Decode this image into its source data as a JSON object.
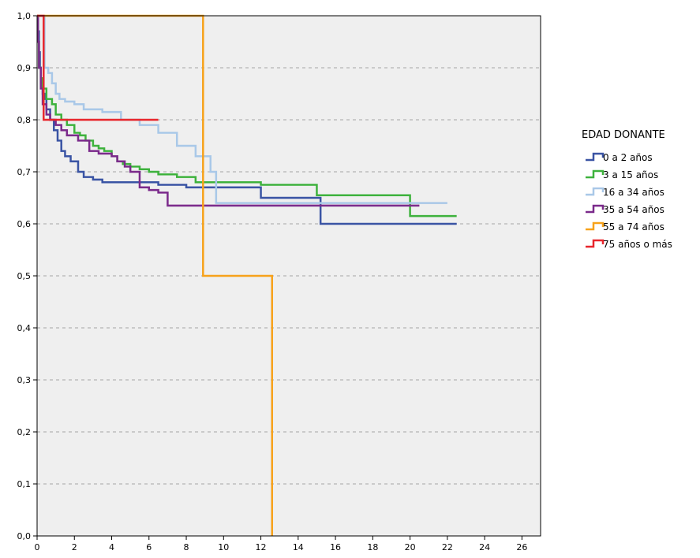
{
  "chart_data": {
    "type": "line",
    "title": "",
    "xlabel": "",
    "ylabel": "",
    "xlim": [
      0,
      27
    ],
    "ylim": [
      0.0,
      1.0
    ],
    "x_ticks": [
      0,
      2,
      4,
      6,
      8,
      10,
      12,
      14,
      16,
      18,
      20,
      22,
      24,
      26
    ],
    "y_ticks": [
      0.0,
      0.1,
      0.2,
      0.3,
      0.4,
      0.5,
      0.6,
      0.7,
      0.8,
      0.9,
      1.0
    ],
    "x_tick_labels": [
      "0",
      "2",
      "4",
      "6",
      "8",
      "10",
      "12",
      "14",
      "16",
      "18",
      "20",
      "22",
      "24",
      "26"
    ],
    "y_tick_labels": [
      "0,0",
      "0,1",
      "0,2",
      "0,3",
      "0,4",
      "0,5",
      "0,6",
      "0,7",
      "0,8",
      "0,9",
      "1,0"
    ],
    "grid": "horizontal-dashed",
    "background": "#efefef",
    "legend": {
      "title": "EDAD DONANTE",
      "position": "right"
    },
    "step": true,
    "series": [
      {
        "name": "0 a 2 años",
        "color": "#3a54a4",
        "x": [
          0,
          0.05,
          0.1,
          0.15,
          0.2,
          0.3,
          0.4,
          0.5,
          0.7,
          0.9,
          1.1,
          1.3,
          1.5,
          1.8,
          2.2,
          2.5,
          3.0,
          3.5,
          5.0,
          6.5,
          8.0,
          10.0,
          12.0,
          15.2,
          22.5
        ],
        "y": [
          1.0,
          0.97,
          0.93,
          0.9,
          0.87,
          0.85,
          0.84,
          0.82,
          0.8,
          0.78,
          0.76,
          0.74,
          0.73,
          0.72,
          0.7,
          0.69,
          0.685,
          0.68,
          0.68,
          0.675,
          0.67,
          0.67,
          0.65,
          0.6,
          0.6
        ]
      },
      {
        "name": "3 a 15 años",
        "color": "#3eb23d",
        "x": [
          0,
          0.05,
          0.1,
          0.2,
          0.3,
          0.5,
          0.8,
          1.0,
          1.3,
          1.6,
          2.0,
          2.3,
          2.6,
          3.0,
          3.3,
          3.6,
          4.0,
          4.3,
          4.6,
          5.0,
          5.5,
          6.0,
          6.5,
          7.5,
          8.5,
          10.0,
          12.0,
          15.0,
          20.0,
          22.5
        ],
        "y": [
          1.0,
          0.95,
          0.9,
          0.88,
          0.86,
          0.84,
          0.83,
          0.81,
          0.8,
          0.79,
          0.775,
          0.77,
          0.76,
          0.75,
          0.745,
          0.74,
          0.73,
          0.72,
          0.715,
          0.71,
          0.705,
          0.7,
          0.695,
          0.69,
          0.68,
          0.68,
          0.675,
          0.655,
          0.615,
          0.615
        ]
      },
      {
        "name": "16 a 34 años",
        "color": "#a9c8e8",
        "x": [
          0,
          0.4,
          0.6,
          0.8,
          1.0,
          1.2,
          1.5,
          2.0,
          2.5,
          3.0,
          3.5,
          4.5,
          5.5,
          6.5,
          7.5,
          8.5,
          9.3,
          9.6,
          22.0
        ],
        "y": [
          1.0,
          0.9,
          0.89,
          0.87,
          0.85,
          0.84,
          0.835,
          0.83,
          0.82,
          0.82,
          0.815,
          0.8,
          0.79,
          0.775,
          0.75,
          0.73,
          0.7,
          0.64,
          0.64
        ]
      },
      {
        "name": "35 a 54 años",
        "color": "#7b2a8b",
        "x": [
          0,
          0.05,
          0.1,
          0.2,
          0.3,
          0.5,
          0.7,
          1.0,
          1.3,
          1.6,
          2.2,
          2.8,
          3.3,
          4.0,
          4.3,
          4.7,
          5.0,
          5.5,
          6.0,
          6.5,
          7.0,
          20.5
        ],
        "y": [
          1.0,
          0.95,
          0.9,
          0.86,
          0.83,
          0.81,
          0.8,
          0.79,
          0.78,
          0.77,
          0.76,
          0.74,
          0.735,
          0.73,
          0.72,
          0.71,
          0.7,
          0.67,
          0.665,
          0.66,
          0.635,
          0.635
        ]
      },
      {
        "name": "55 a 74 años",
        "color": "#f7a21b",
        "x": [
          0,
          8.9,
          12.6
        ],
        "y": [
          1.0,
          0.5,
          0.0
        ]
      },
      {
        "name": "75 años o más",
        "color": "#e8262c",
        "x": [
          0,
          0.35,
          6.5
        ],
        "y": [
          1.0,
          0.8,
          0.8
        ]
      }
    ]
  }
}
